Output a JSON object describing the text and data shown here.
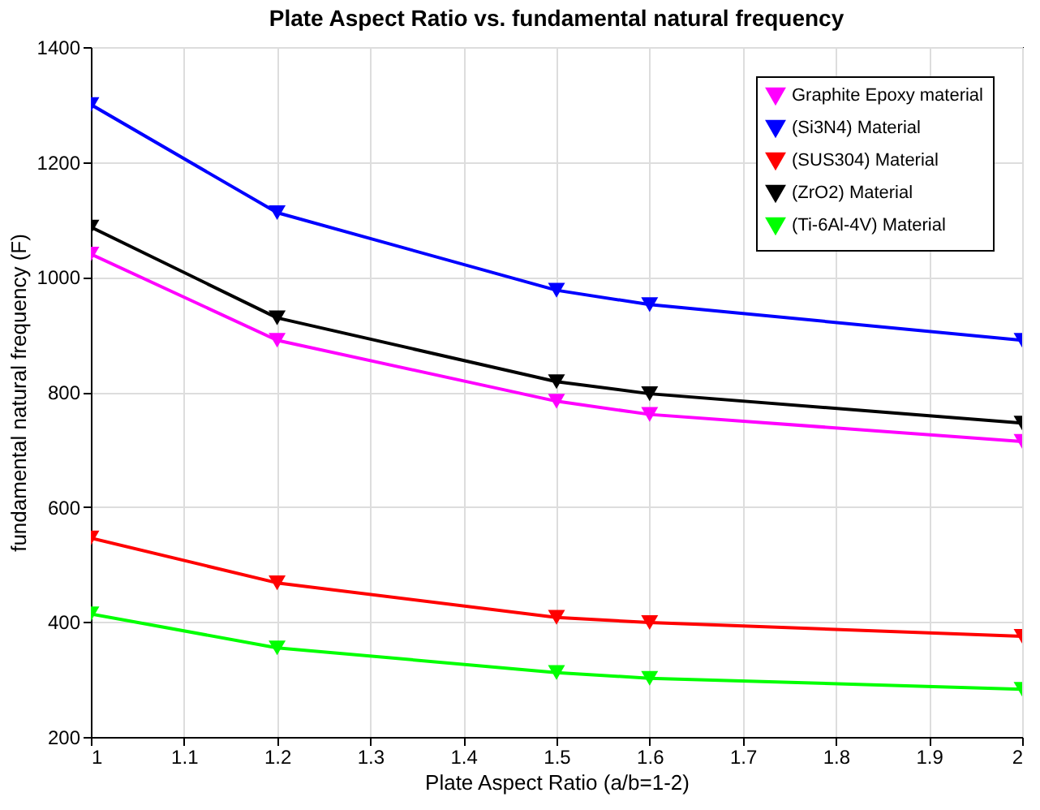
{
  "chart_data": {
    "type": "line",
    "title": "Plate Aspect  Ratio vs.    fundamental natural frequency",
    "xlabel": "Plate Aspect Ratio (a/b=1-2)",
    "ylabel": "fundamental natural frequency (F)",
    "x": [
      1,
      1.2,
      1.5,
      1.6,
      2
    ],
    "series": [
      {
        "name": " Graphite Epoxy material",
        "color": "#ff00ff",
        "values": [
          1040,
          890,
          784,
          761,
          714
        ]
      },
      {
        "name": "(Si3N4) Material",
        "color": "#0000ff",
        "values": [
          1300,
          1112,
          977,
          952,
          890
        ]
      },
      {
        "name": "(SUS304) Material",
        "color": "#ff0000",
        "values": [
          546,
          468,
          408,
          399,
          375
        ]
      },
      {
        "name": "(ZrO2) Material",
        "color": "#000000",
        "values": [
          1087,
          929,
          818,
          797,
          746
        ]
      },
      {
        "name": "(Ti-6Al-4V) Material",
        "color": "#00ff00",
        "values": [
          414,
          355,
          312,
          302,
          283
        ]
      }
    ],
    "xlim": [
      1,
      2
    ],
    "xticks": [
      1,
      1.1,
      1.2,
      1.3,
      1.4,
      1.5,
      1.6,
      1.7,
      1.8,
      1.9,
      2
    ],
    "ylim": [
      200,
      1400
    ],
    "yticks": [
      200,
      400,
      600,
      800,
      1000,
      1200,
      1400
    ],
    "grid": true,
    "legend": "top right",
    "marker": "triangle",
    "line_style": "solid"
  }
}
